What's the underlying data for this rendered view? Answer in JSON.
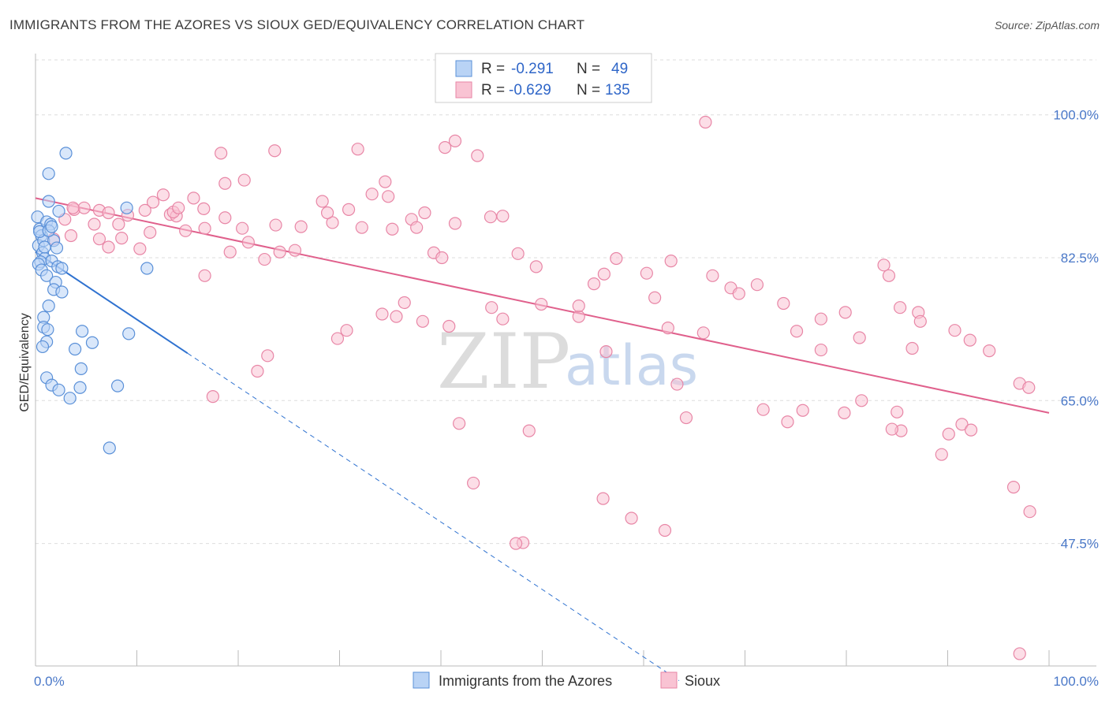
{
  "header": {
    "title": "IMMIGRANTS FROM THE AZORES VS SIOUX GED/EQUIVALENCY CORRELATION CHART",
    "source": "Source: ZipAtlas.com"
  },
  "legend": {
    "rows": [
      {
        "r_label": "R =",
        "r_value": "-0.291",
        "n_label": "N =",
        "n_value": "49"
      },
      {
        "r_label": "R =",
        "r_value": "-0.629",
        "n_label": "N =",
        "n_value": "135"
      }
    ]
  },
  "watermark": {
    "zip": "ZIP",
    "atlas": "atlas"
  },
  "colors": {
    "azores_fill": "#b9d3f5",
    "azores_stroke": "#5a90d8",
    "azores_line": "#2f72d0",
    "sioux_fill": "#f9c3d3",
    "sioux_stroke": "#e886a6",
    "sioux_line": "#e0608c",
    "grid": "#dddddd",
    "tick_text": "#4a78c8"
  },
  "chart_data": {
    "type": "scatter",
    "title": "IMMIGRANTS FROM THE AZORES VS SIOUX GED/EQUIVALENCY CORRELATION CHART",
    "xlabel": "",
    "ylabel": "GED/Equivalency",
    "xlim": [
      0,
      100
    ],
    "ylim": [
      32.5,
      107.5
    ],
    "x_tick_labels": [
      "0.0%",
      "100.0%"
    ],
    "y_ticks": [
      100.0,
      82.5,
      65.0,
      47.5
    ],
    "y_tick_labels": [
      "100.0%",
      "82.5%",
      "65.0%",
      "47.5%"
    ],
    "grid": true,
    "legend_position": "top-center",
    "series": [
      {
        "name": "Immigrants from the Azores",
        "r": -0.291,
        "n": 49,
        "trend": {
          "x0": 0,
          "y0": 83.2,
          "x1": 15,
          "y1": 70.8,
          "dashed_to_x": 63.5
        },
        "points": [
          [
            0.2,
            87.5
          ],
          [
            0.4,
            86.0
          ],
          [
            0.6,
            85.2
          ],
          [
            0.3,
            84.0
          ],
          [
            0.8,
            84.6
          ],
          [
            1.1,
            86.9
          ],
          [
            1.5,
            86.6
          ],
          [
            2.3,
            88.2
          ],
          [
            1.3,
            89.4
          ],
          [
            1.3,
            92.8
          ],
          [
            3.0,
            95.3
          ],
          [
            0.7,
            83.1
          ],
          [
            1.8,
            84.6
          ],
          [
            2.1,
            83.7
          ],
          [
            0.9,
            82.4
          ],
          [
            0.5,
            82.0
          ],
          [
            1.6,
            82.1
          ],
          [
            2.2,
            81.4
          ],
          [
            2.6,
            81.2
          ],
          [
            0.3,
            81.7
          ],
          [
            0.6,
            81.0
          ],
          [
            1.1,
            80.3
          ],
          [
            2.0,
            79.5
          ],
          [
            1.8,
            78.6
          ],
          [
            2.6,
            78.3
          ],
          [
            1.3,
            76.6
          ],
          [
            0.8,
            75.2
          ],
          [
            0.8,
            74.0
          ],
          [
            1.2,
            73.7
          ],
          [
            1.1,
            72.2
          ],
          [
            0.7,
            71.6
          ],
          [
            4.6,
            73.5
          ],
          [
            3.9,
            71.3
          ],
          [
            5.6,
            72.1
          ],
          [
            4.5,
            68.9
          ],
          [
            1.1,
            67.8
          ],
          [
            1.6,
            66.9
          ],
          [
            2.3,
            66.3
          ],
          [
            3.4,
            65.3
          ],
          [
            4.4,
            66.6
          ],
          [
            8.1,
            66.8
          ],
          [
            7.3,
            59.2
          ],
          [
            9.2,
            73.2
          ],
          [
            11.0,
            81.2
          ],
          [
            9.0,
            88.6
          ],
          [
            0.4,
            85.7
          ],
          [
            1.3,
            85.8
          ],
          [
            1.6,
            86.3
          ],
          [
            0.9,
            83.8
          ]
        ]
      },
      {
        "name": "Sioux",
        "r": -0.629,
        "n": 135,
        "trend": {
          "x0": 0,
          "y0": 89.8,
          "x1": 100,
          "y1": 63.5
        },
        "points": [
          [
            66.1,
            99.1
          ],
          [
            31.8,
            95.8
          ],
          [
            41.4,
            96.8
          ],
          [
            23.6,
            95.6
          ],
          [
            18.3,
            95.3
          ],
          [
            43.6,
            95.0
          ],
          [
            34.5,
            91.8
          ],
          [
            40.4,
            96.0
          ],
          [
            20.6,
            92.0
          ],
          [
            18.7,
            91.6
          ],
          [
            6.3,
            88.3
          ],
          [
            11.6,
            89.3
          ],
          [
            12.6,
            90.2
          ],
          [
            15.6,
            89.8
          ],
          [
            3.8,
            88.4
          ],
          [
            4.8,
            88.6
          ],
          [
            7.2,
            88.0
          ],
          [
            10.8,
            88.3
          ],
          [
            13.3,
            87.8
          ],
          [
            16.6,
            88.5
          ],
          [
            20.4,
            86.1
          ],
          [
            23.7,
            86.5
          ],
          [
            29.3,
            86.8
          ],
          [
            33.2,
            90.3
          ],
          [
            28.3,
            89.4
          ],
          [
            28.8,
            88.0
          ],
          [
            30.9,
            88.4
          ],
          [
            34.8,
            90.0
          ],
          [
            37.1,
            87.2
          ],
          [
            37.6,
            86.2
          ],
          [
            38.4,
            88.0
          ],
          [
            41.4,
            86.7
          ],
          [
            46.1,
            87.6
          ],
          [
            3.7,
            88.6
          ],
          [
            5.8,
            86.6
          ],
          [
            3.5,
            85.2
          ],
          [
            1.8,
            84.8
          ],
          [
            2.9,
            87.2
          ],
          [
            6.3,
            84.8
          ],
          [
            7.2,
            83.8
          ],
          [
            8.5,
            84.9
          ],
          [
            10.3,
            83.6
          ],
          [
            11.3,
            85.6
          ],
          [
            13.9,
            87.6
          ],
          [
            14.8,
            85.8
          ],
          [
            16.7,
            86.1
          ],
          [
            19.2,
            83.2
          ],
          [
            21.0,
            84.4
          ],
          [
            24.1,
            83.2
          ],
          [
            22.6,
            82.3
          ],
          [
            26.2,
            86.3
          ],
          [
            25.6,
            83.4
          ],
          [
            32.2,
            86.2
          ],
          [
            35.2,
            86.0
          ],
          [
            39.3,
            83.1
          ],
          [
            40.1,
            82.5
          ],
          [
            44.9,
            87.5
          ],
          [
            47.6,
            83.0
          ],
          [
            49.4,
            81.4
          ],
          [
            55.1,
            79.3
          ],
          [
            56.1,
            80.5
          ],
          [
            57.3,
            82.4
          ],
          [
            60.3,
            80.6
          ],
          [
            61.1,
            77.6
          ],
          [
            62.7,
            82.1
          ],
          [
            66.8,
            80.3
          ],
          [
            68.6,
            78.8
          ],
          [
            69.4,
            78.1
          ],
          [
            71.2,
            79.2
          ],
          [
            73.8,
            76.9
          ],
          [
            77.5,
            75.0
          ],
          [
            75.1,
            73.5
          ],
          [
            77.5,
            71.2
          ],
          [
            79.9,
            75.8
          ],
          [
            81.3,
            72.7
          ],
          [
            83.7,
            81.6
          ],
          [
            84.2,
            80.3
          ],
          [
            85.3,
            76.4
          ],
          [
            87.1,
            75.8
          ],
          [
            87.3,
            74.7
          ],
          [
            90.7,
            73.6
          ],
          [
            92.2,
            72.4
          ],
          [
            94.1,
            71.1
          ],
          [
            97.1,
            67.1
          ],
          [
            98.0,
            66.6
          ],
          [
            86.5,
            71.4
          ],
          [
            81.5,
            65.0
          ],
          [
            75.7,
            63.8
          ],
          [
            71.8,
            63.9
          ],
          [
            74.2,
            62.4
          ],
          [
            79.8,
            63.5
          ],
          [
            85.0,
            63.6
          ],
          [
            85.4,
            61.3
          ],
          [
            91.4,
            62.1
          ],
          [
            84.5,
            61.5
          ],
          [
            90.1,
            60.9
          ],
          [
            92.3,
            61.4
          ],
          [
            89.4,
            58.4
          ],
          [
            96.5,
            54.4
          ],
          [
            98.1,
            51.4
          ],
          [
            97.1,
            34.0
          ],
          [
            62.1,
            49.1
          ],
          [
            58.8,
            50.6
          ],
          [
            56.0,
            53.0
          ],
          [
            48.1,
            47.6
          ],
          [
            47.4,
            47.5
          ],
          [
            41.8,
            62.2
          ],
          [
            43.2,
            54.9
          ],
          [
            48.7,
            61.3
          ],
          [
            64.2,
            62.9
          ],
          [
            63.3,
            67.0
          ],
          [
            65.9,
            73.3
          ],
          [
            62.4,
            73.9
          ],
          [
            56.3,
            71.0
          ],
          [
            53.6,
            75.3
          ],
          [
            53.6,
            76.6
          ],
          [
            49.9,
            76.8
          ],
          [
            46.1,
            75.0
          ],
          [
            45.0,
            76.4
          ],
          [
            40.8,
            74.1
          ],
          [
            38.2,
            74.7
          ],
          [
            36.4,
            77.0
          ],
          [
            35.6,
            75.3
          ],
          [
            34.2,
            75.6
          ],
          [
            30.7,
            73.6
          ],
          [
            29.8,
            72.6
          ],
          [
            22.9,
            70.5
          ],
          [
            21.9,
            68.6
          ],
          [
            17.5,
            65.5
          ],
          [
            8.2,
            86.6
          ],
          [
            16.7,
            80.3
          ],
          [
            13.6,
            88.1
          ],
          [
            9.1,
            87.7
          ],
          [
            14.1,
            88.6
          ],
          [
            18.7,
            87.4
          ]
        ]
      }
    ]
  }
}
